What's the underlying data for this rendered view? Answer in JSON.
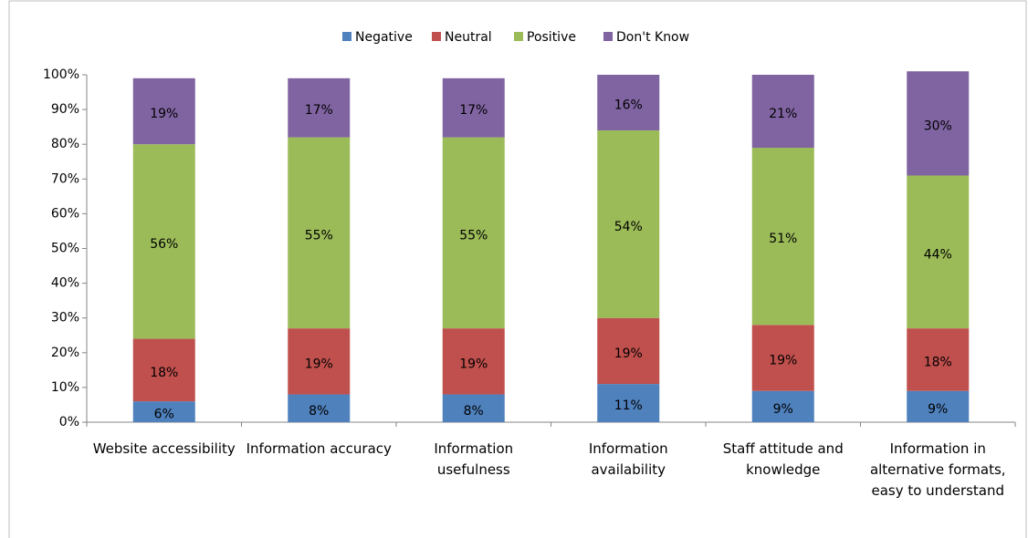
{
  "chart_data": {
    "type": "stacked_bar",
    "categories": [
      "Website accessibility",
      "Information accuracy",
      "Information usefulness",
      "Information availability",
      "Staff attitude and knowledge",
      "Information in alternative formats, easy to understand"
    ],
    "series": [
      {
        "name": "Negative",
        "color": "#4f81bd",
        "values": [
          6,
          8,
          8,
          11,
          9,
          9
        ],
        "value_labels": [
          "6%",
          "8%",
          "8%",
          "11%",
          "9%",
          "9%"
        ]
      },
      {
        "name": "Neutral",
        "color": "#c0504d",
        "values": [
          18,
          19,
          19,
          19,
          19,
          18
        ],
        "value_labels": [
          "18%",
          "19%",
          "19%",
          "19%",
          "19%",
          "18%"
        ]
      },
      {
        "name": "Positive",
        "color": "#9bbb59",
        "values": [
          56,
          55,
          55,
          54,
          51,
          44
        ],
        "value_labels": [
          "56%",
          "55%",
          "55%",
          "54%",
          "51%",
          "44%"
        ]
      },
      {
        "name": "Don't Know",
        "color": "#8064a2",
        "values": [
          19,
          17,
          17,
          16,
          21,
          30
        ],
        "value_labels": [
          "19%",
          "17%",
          "17%",
          "16%",
          "21%",
          "30%"
        ]
      }
    ],
    "ylim": [
      0,
      100
    ],
    "yticks": [
      {
        "value": 0,
        "label": "0%"
      },
      {
        "value": 10,
        "label": "10%"
      },
      {
        "value": 20,
        "label": "20%"
      },
      {
        "value": 30,
        "label": "30%"
      },
      {
        "value": 40,
        "label": "40%"
      },
      {
        "value": 50,
        "label": "50%"
      },
      {
        "value": 60,
        "label": "60%"
      },
      {
        "value": 70,
        "label": "70%"
      },
      {
        "value": 80,
        "label": "80%"
      },
      {
        "value": 90,
        "label": "90%"
      },
      {
        "value": 100,
        "label": "100%"
      }
    ],
    "legend": "top"
  }
}
